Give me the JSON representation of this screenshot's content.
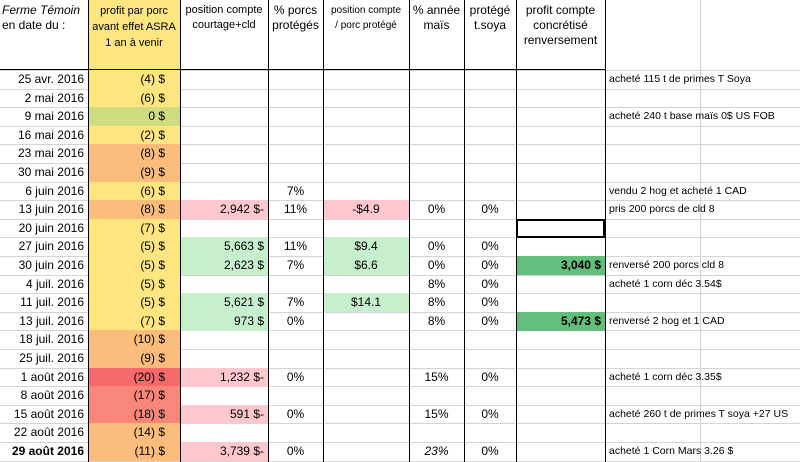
{
  "headers": {
    "date": [
      "Ferme Témoin",
      "en date du :"
    ],
    "profit": [
      "profit par porc",
      "avant effet ASRA",
      "1 an à venir"
    ],
    "position": [
      "position compte",
      "courtage+cld"
    ],
    "pct": [
      "% porcs",
      "protégés"
    ],
    "pos_porc": [
      "position compte",
      "/ porc protégé"
    ],
    "mais": [
      "% année",
      "maïs"
    ],
    "soya": [
      "protégé",
      "t.soya"
    ],
    "concret": [
      "profit compte",
      "concrétisé",
      "renversement"
    ]
  },
  "colors": {
    "profit_best": "#cfdd80",
    "profit_good": "#ffe680",
    "profit_mid": "#fcbc7b",
    "profit_bad": "#f8877a",
    "profit_worst": "#f8696b",
    "neg_bg": "#ffc7ce",
    "pos_bg": "#c6efce",
    "concret_bg": "#63be7b",
    "selected_border": "#000000"
  },
  "rows": [
    {
      "date": "25 avr. 2016",
      "profit": "(4) $",
      "profit_level": "good",
      "position": "",
      "pct": "",
      "pos_porc": "",
      "mais": "",
      "soya": "",
      "concret": "",
      "note": "acheté 115 t de primes T Soya"
    },
    {
      "date": "2 mai 2016",
      "profit": "(6) $",
      "profit_level": "good",
      "position": "",
      "pct": "",
      "pos_porc": "",
      "mais": "",
      "soya": "",
      "concret": "",
      "note": ""
    },
    {
      "date": "9 mai 2016",
      "profit": "0  $",
      "profit_level": "best",
      "position": "",
      "pct": "",
      "pos_porc": "",
      "mais": "",
      "soya": "",
      "concret": "",
      "note": "acheté 240 t base maïs 0$ US FOB"
    },
    {
      "date": "16 mai 2016",
      "profit": "(2) $",
      "profit_level": "good",
      "position": "",
      "pct": "",
      "pos_porc": "",
      "mais": "",
      "soya": "",
      "concret": "",
      "note": ""
    },
    {
      "date": "23 mai 2016",
      "profit": "(8) $",
      "profit_level": "mid",
      "position": "",
      "pct": "",
      "pos_porc": "",
      "mais": "",
      "soya": "",
      "concret": "",
      "note": ""
    },
    {
      "date": "30 mai 2016",
      "profit": "(9) $",
      "profit_level": "mid",
      "position": "",
      "pct": "",
      "pos_porc": "",
      "mais": "",
      "soya": "",
      "concret": "",
      "note": ""
    },
    {
      "date": "6 juin 2016",
      "profit": "(6) $",
      "profit_level": "good",
      "position": "",
      "pct": "7%",
      "pos_porc": "",
      "mais": "",
      "soya": "",
      "concret": "",
      "note": "vendu 2 hog et acheté 1 CAD"
    },
    {
      "date": "13 juin 2016",
      "profit": "(8) $",
      "profit_level": "mid",
      "position": "2,942 $-",
      "position_style": "neg",
      "pct": "11%",
      "pos_porc": "-$4.9",
      "pos_porc_style": "neg",
      "mais": "0%",
      "soya": "0%",
      "concret": "",
      "note": "pris 200 porcs de cld 8"
    },
    {
      "date": "20 juin 2016",
      "profit": "(7) $",
      "profit_level": "good",
      "position": "",
      "pct": "",
      "pos_porc": "",
      "mais": "",
      "soya": "",
      "concret": "",
      "selected": true,
      "note": ""
    },
    {
      "date": "27 juin 2016",
      "profit": "(5) $",
      "profit_level": "good",
      "position": "5,663 $",
      "position_style": "pos",
      "pct": "11%",
      "pos_porc": "$9.4",
      "pos_porc_style": "pos",
      "mais": "0%",
      "soya": "0%",
      "concret": "",
      "note": ""
    },
    {
      "date": "30 juin 2016",
      "profit": "(5) $",
      "profit_level": "good",
      "position": "2,623 $",
      "position_style": "pos",
      "pct": "7%",
      "pos_porc": "$6.6",
      "pos_porc_style": "pos",
      "mais": "0%",
      "soya": "0%",
      "concret": "3,040 $",
      "note": "renversé 200 porcs cld 8"
    },
    {
      "date": "4 juil. 2016",
      "profit": "(5) $",
      "profit_level": "good",
      "position": "",
      "pct": "",
      "pos_porc": "",
      "mais": "8%",
      "soya": "0%",
      "concret": "",
      "note": "acheté 1 corn déc 3.54$"
    },
    {
      "date": "11 juil. 2016",
      "profit": "(5) $",
      "profit_level": "good",
      "position": "5,621 $",
      "position_style": "pos",
      "pct": "7%",
      "pos_porc": "$14.1",
      "pos_porc_style": "pos",
      "mais": "8%",
      "soya": "0%",
      "concret": "",
      "note": ""
    },
    {
      "date": "13 juil. 2016",
      "profit": "(7) $",
      "profit_level": "good",
      "position": "973 $",
      "position_style": "pos",
      "pct": "0%",
      "pos_porc": "",
      "mais": "8%",
      "soya": "0%",
      "concret": "5,473 $",
      "note": "renversé 2 hog et 1 CAD"
    },
    {
      "date": "18 juil. 2016",
      "profit": "(10) $",
      "profit_level": "mid",
      "position": "",
      "pct": "",
      "pos_porc": "",
      "mais": "",
      "soya": "",
      "concret": "",
      "note": ""
    },
    {
      "date": "25 juil. 2016",
      "profit": "(9) $",
      "profit_level": "mid",
      "position": "",
      "pct": "",
      "pos_porc": "",
      "mais": "",
      "soya": "",
      "concret": "",
      "note": ""
    },
    {
      "date": "1 août 2016",
      "profit": "(20) $",
      "profit_level": "worst",
      "position": "1,232 $-",
      "position_style": "neg",
      "pct": "0%",
      "pos_porc": "",
      "mais": "15%",
      "soya": "0%",
      "concret": "",
      "note": "acheté 1 corn déc 3.35$"
    },
    {
      "date": "8 août 2016",
      "profit": "(17) $",
      "profit_level": "bad",
      "position": "",
      "pct": "",
      "pos_porc": "",
      "mais": "",
      "soya": "",
      "concret": "",
      "note": ""
    },
    {
      "date": "15 août 2016",
      "profit": "(18) $",
      "profit_level": "bad",
      "position": "591 $-",
      "position_style": "neg",
      "pct": "0%",
      "pos_porc": "",
      "mais": "15%",
      "soya": "0%",
      "concret": "",
      "note": "acheté 260 t de primes T soya +27 US"
    },
    {
      "date": "22 août 2016",
      "profit": "(14) $",
      "profit_level": "mid",
      "position": "",
      "pct": "",
      "pos_porc": "",
      "mais": "",
      "soya": "",
      "concret": "",
      "note": ""
    },
    {
      "date": "29 août 2016",
      "profit": "(11) $",
      "profit_level": "mid",
      "position": "3,739 $-",
      "position_style": "neg",
      "pct": "0%",
      "pos_porc": "",
      "mais": "23%",
      "soya": "0%",
      "concret": "",
      "bold_date": true,
      "italic_mais": true,
      "note": "acheté 1 Corn Mars 3.26 $"
    }
  ]
}
